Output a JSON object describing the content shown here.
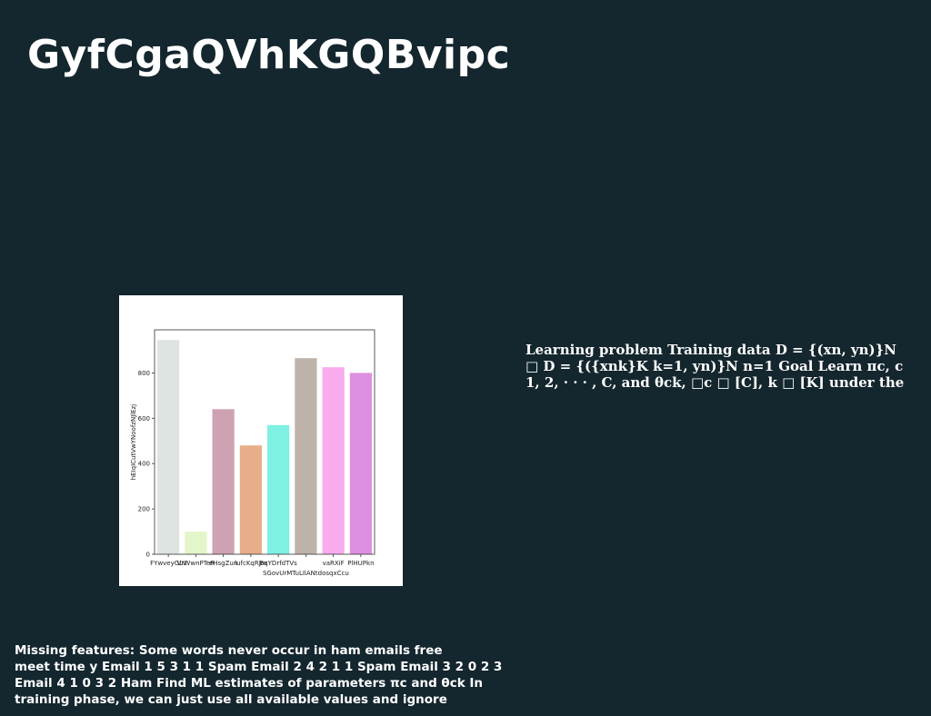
{
  "slide": {
    "title": "GyfCgaQVhKGQBvipc",
    "side_text": "Learning problem Training data D = {(xn, yn)}N\n□ D = {({xnk}K k=1, yn)}N n=1 Goal Learn πc, c\n1, 2, · · · , C, and θck, □c □ [C], k □ [K] under the",
    "bottom_text": "Missing features: Some words never occur in ham emails free\nmeet time y Email 1 5 3 1 1 Spam Email 2 4 2 1 1 Spam Email 3 2 0 2 3\nEmail 4 1 0 3 2 Ham Find ML estimates of parameters πc and θck In\ntraining phase, we can just use all available values and ignore"
  },
  "chart_data": {
    "type": "bar",
    "categories": [
      "FYwveyGLV",
      "VrWwnPTeR",
      "eHsgZun",
      "lufcKqRJm",
      "BqYDrfdTVs",
      "SGovUrMTuLIlANtdosqxCcu",
      "vaRXiF",
      "PlHUPkn"
    ],
    "category_rows": [
      0,
      0,
      0,
      0,
      0,
      1,
      0,
      0
    ],
    "values": [
      945,
      100,
      640,
      480,
      570,
      865,
      825,
      800
    ],
    "colors": [
      "#dde3e0",
      "#e3f6c9",
      "#cea1b3",
      "#e6ae89",
      "#7ef0e4",
      "#bdb3ab",
      "#f8acee",
      "#dd8fdf"
    ],
    "title": "",
    "xlabel": "",
    "ylabel": "hEIqICutVwYNoofzNJlEzj",
    "ylim": [
      0,
      990
    ],
    "yticks": [
      0,
      200,
      400,
      600,
      800
    ],
    "grid": false,
    "legend": "none"
  }
}
